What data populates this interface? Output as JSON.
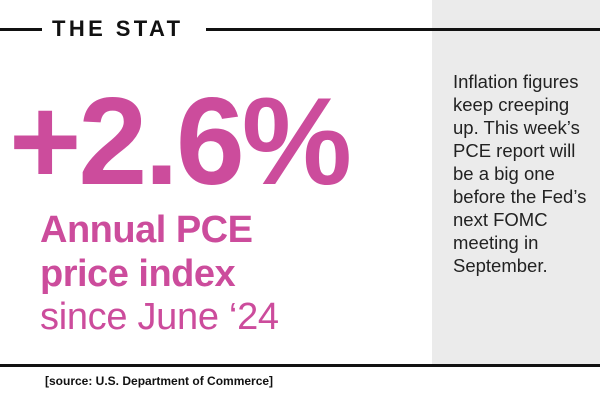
{
  "header": {
    "title": "THE STAT"
  },
  "stat": {
    "value": "+2.6%",
    "line1": "Annual PCE",
    "line2": "price index",
    "line3": "since June ‘24"
  },
  "blurb": {
    "text": "Inflation figures keep creeping up. This week’s PCE report will be a big one before the Fed’s next FOMC meeting in September."
  },
  "footer": {
    "source": "[source: U.S. Department of Commerce]"
  },
  "colors": {
    "accent": "#cc4c9c",
    "panel": "#ebebeb",
    "rule": "#111111"
  }
}
